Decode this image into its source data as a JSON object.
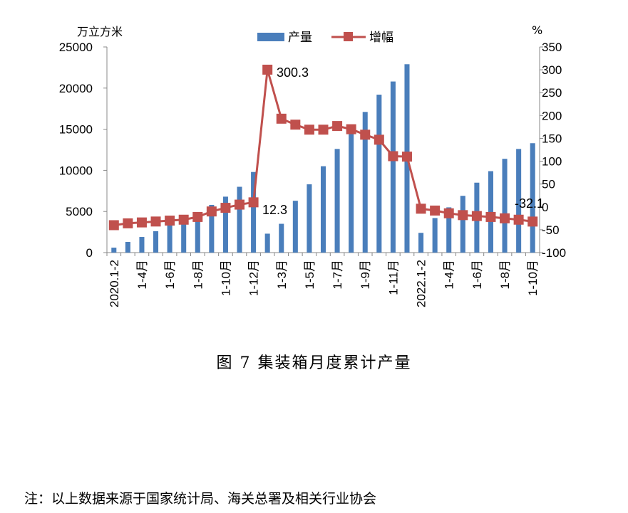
{
  "chart_data": {
    "type": "bar+line",
    "left_unit": "万立方米",
    "right_unit": "%",
    "legend": [
      "产量",
      "增幅"
    ],
    "left_ylim": [
      0,
      25000
    ],
    "left_yticks": [
      "0",
      "5000",
      "10000",
      "15000",
      "20000",
      "25000"
    ],
    "right_ylim": [
      -100,
      350
    ],
    "right_yticks": [
      "-100",
      "-50",
      "0",
      "50",
      "100",
      "150",
      "200",
      "250",
      "300",
      "350"
    ],
    "x_tick_labels": [
      "2020.1-2",
      "1-4月",
      "1-6月",
      "1-8月",
      "1-10月",
      "1-12月",
      "1-3月",
      "1-5月",
      "1-7月",
      "1-9月",
      "1-11月",
      "2022.1-2",
      "1-4月",
      "1-6月",
      "1-8月",
      "1-10月"
    ],
    "series": [
      {
        "name": "产量",
        "values": [
          600,
          1300,
          1900,
          2600,
          3300,
          4000,
          4700,
          5800,
          6800,
          8000,
          9800,
          2300,
          3500,
          6300,
          8300,
          10500,
          12600,
          14700,
          17100,
          19200,
          20800,
          22900,
          2400,
          4200,
          5500,
          6900,
          8500,
          9900,
          11400,
          12600,
          13300
        ]
      },
      {
        "name": "增幅",
        "values": [
          -40,
          -36,
          -34,
          -32,
          -30,
          -28,
          -22,
          -10,
          -2,
          5,
          10,
          300.3,
          193,
          180,
          169,
          169,
          177,
          170,
          158,
          147,
          111,
          110,
          -4,
          -8,
          -14,
          -18,
          -20,
          -22,
          -25,
          -28,
          -32.1
        ]
      }
    ],
    "annotations": [
      "300.3",
      "12.3",
      "-32.1"
    ],
    "colors": {
      "bar": "#4a7ebb",
      "line": "#c0504d"
    }
  },
  "caption": "图 7  集装箱月度累计产量",
  "note": "注：以上数据来源于国家统计局、海关总署及相关行业协会"
}
